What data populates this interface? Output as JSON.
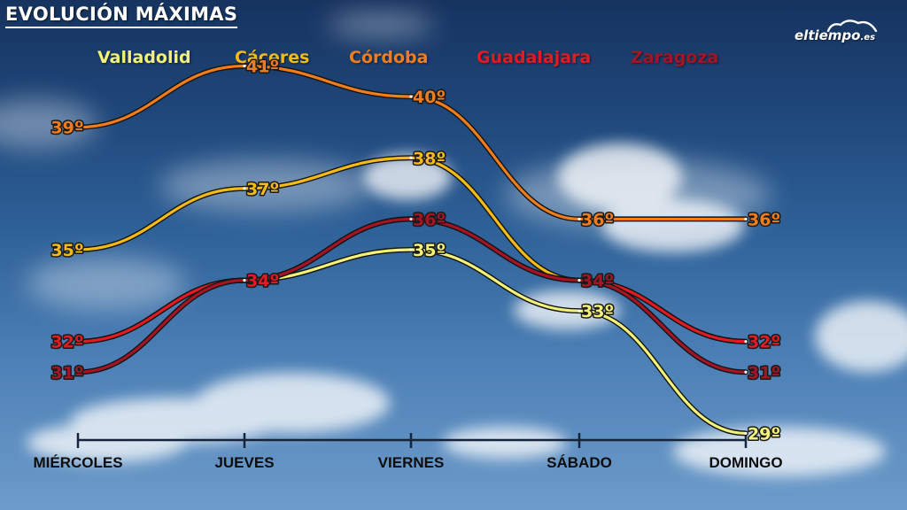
{
  "header": {
    "title": "EVOLUCIÓN MÁXIMAS",
    "logo_main": "eltiempo",
    "logo_suffix": ".es"
  },
  "chart_data": {
    "type": "line",
    "title": "EVOLUCIÓN MÁXIMAS",
    "categories": [
      "MIÉRCOLES",
      "JUEVES",
      "VIERNES",
      "SÁBADO",
      "DOMINGO"
    ],
    "ylim": [
      28,
      42
    ],
    "grid": false,
    "legend_position": "top",
    "series": [
      {
        "name": "Valladolid",
        "color": "#f2f27a",
        "values": [
          32,
          34,
          35,
          33,
          29
        ],
        "labels": [
          "",
          "",
          "35º",
          "33º",
          "29º"
        ]
      },
      {
        "name": "Cáceres",
        "color": "#f2bb1a",
        "values": [
          35,
          37,
          38,
          34,
          32
        ],
        "labels": [
          "35º",
          "37º",
          "38º",
          "",
          ""
        ]
      },
      {
        "name": "Córdoba",
        "color": "#ef7d1e",
        "values": [
          39,
          41,
          40,
          36,
          36
        ],
        "labels": [
          "39º",
          "41º",
          "40º",
          "36º",
          "36º"
        ]
      },
      {
        "name": "Guadalajara",
        "color": "#e21b22",
        "values": [
          32,
          34,
          36,
          34,
          32
        ],
        "labels": [
          "32º",
          "34º",
          "",
          "",
          "32º"
        ]
      },
      {
        "name": "Zaragoza",
        "color": "#a31524",
        "values": [
          31,
          34,
          36,
          34,
          31
        ],
        "labels": [
          "31º",
          "",
          "36º",
          "34º",
          "31º"
        ]
      }
    ]
  }
}
